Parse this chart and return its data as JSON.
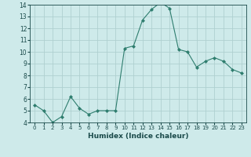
{
  "x": [
    0,
    1,
    2,
    3,
    4,
    5,
    6,
    7,
    8,
    9,
    10,
    11,
    12,
    13,
    14,
    15,
    16,
    17,
    18,
    19,
    20,
    21,
    22,
    23
  ],
  "y": [
    5.5,
    5.0,
    4.0,
    4.5,
    6.2,
    5.2,
    4.7,
    5.0,
    5.0,
    5.0,
    10.3,
    10.5,
    12.7,
    13.6,
    14.2,
    13.7,
    10.2,
    10.0,
    8.7,
    9.2,
    9.5,
    9.2,
    8.5,
    8.2
  ],
  "line_color": "#2e7d6e",
  "marker": "D",
  "marker_size": 2.0,
  "background_color": "#ceeaea",
  "grid_color": "#afd0d0",
  "tick_color": "#1a4a4a",
  "xlabel": "Humidex (Indice chaleur)",
  "xlim": [
    -0.5,
    23.5
  ],
  "ylim": [
    4,
    14
  ],
  "yticks": [
    4,
    5,
    6,
    7,
    8,
    9,
    10,
    11,
    12,
    13,
    14
  ],
  "xticks": [
    0,
    1,
    2,
    3,
    4,
    5,
    6,
    7,
    8,
    9,
    10,
    11,
    12,
    13,
    14,
    15,
    16,
    17,
    18,
    19,
    20,
    21,
    22,
    23
  ]
}
